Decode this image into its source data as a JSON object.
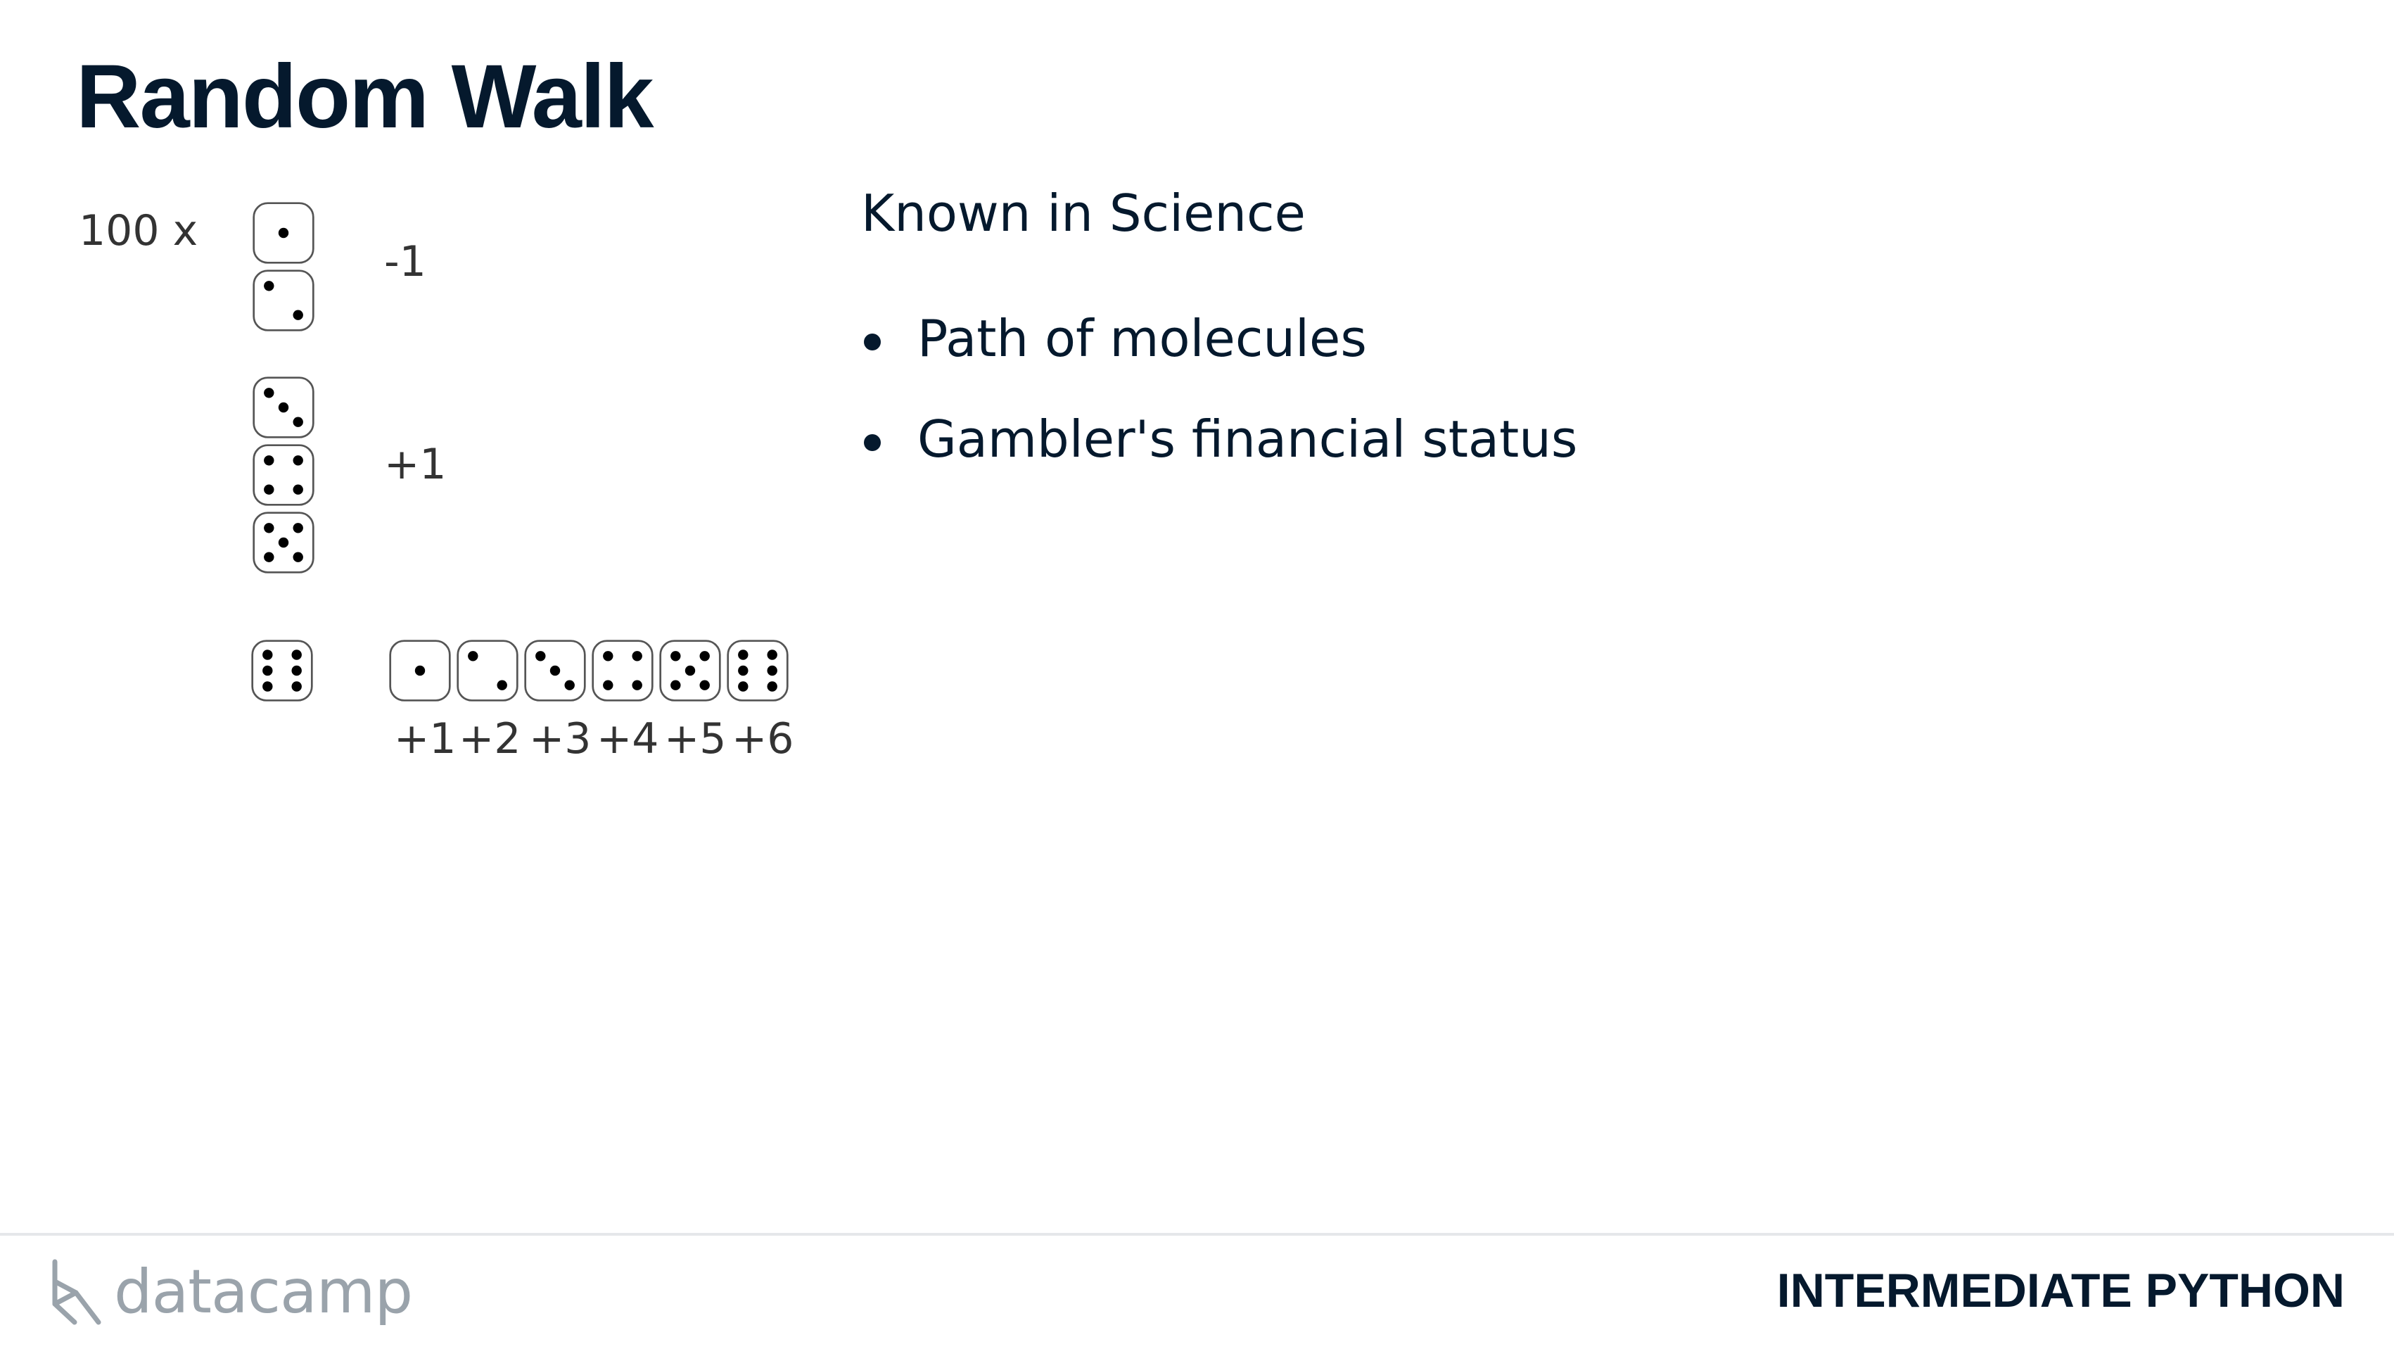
{
  "slide": {
    "title": "Random Walk"
  },
  "dice_diagram": {
    "repeat_label": "100 x",
    "minus_label": "-1",
    "plus_label": "+1",
    "roll_labels": [
      "+1",
      "+2",
      "+3",
      "+4",
      "+5",
      "+6"
    ]
  },
  "science": {
    "heading": "Known in Science",
    "bullets": [
      "Path of molecules",
      "Gambler's financial status"
    ]
  },
  "footer": {
    "brand": "datacamp",
    "course": "INTERMEDIATE PYTHON"
  },
  "colors": {
    "text_primary": "#05192d",
    "label_gray": "#333333",
    "logo_gray": "#9aa3ab",
    "divider": "#e5e7ea"
  }
}
